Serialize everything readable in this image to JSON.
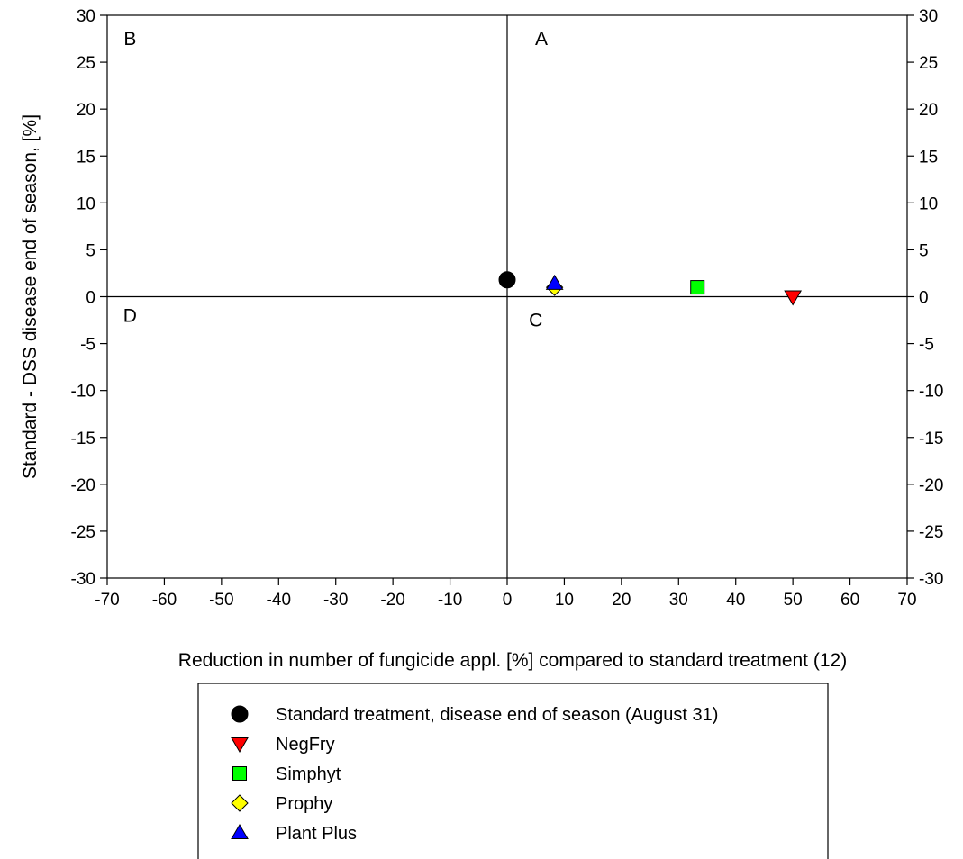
{
  "chart_data": {
    "type": "scatter",
    "xlabel": "Reduction in number of fungicide appl. [%] compared to standard treatment (12)",
    "ylabel": "Standard - DSS disease end of season, [%]",
    "xlim": [
      -70,
      70
    ],
    "ylim": [
      -30,
      30
    ],
    "x_ticks": [
      -70,
      -60,
      -50,
      -40,
      -30,
      -20,
      -10,
      0,
      10,
      20,
      30,
      40,
      50,
      60,
      70
    ],
    "y_ticks": [
      -30,
      -25,
      -20,
      -15,
      -10,
      -5,
      0,
      5,
      10,
      15,
      20,
      25,
      30
    ],
    "right_axis_ticks": true,
    "grid": false,
    "reference_lines": {
      "x": 0,
      "y": 0
    },
    "quadrant_labels": [
      {
        "text": "A",
        "x": 6,
        "y": 27.5
      },
      {
        "text": "B",
        "x": -66,
        "y": 27.5
      },
      {
        "text": "C",
        "x": 5,
        "y": -2.5
      },
      {
        "text": "D",
        "x": -66,
        "y": -2
      }
    ],
    "legend_position": "bottom-center",
    "series": [
      {
        "name": "Standard treatment, disease end of season (August 31)",
        "marker": "circle",
        "color": "#000000",
        "points": [
          {
            "x": 0,
            "y": 1.8
          }
        ]
      },
      {
        "name": "NegFry",
        "marker": "triangle-down",
        "color": "#ff0000",
        "points": [
          {
            "x": 50,
            "y": 0
          }
        ]
      },
      {
        "name": "Simphyt",
        "marker": "square",
        "color": "#00ff00",
        "points": [
          {
            "x": 33.3,
            "y": 1
          }
        ]
      },
      {
        "name": "Prophy",
        "marker": "diamond",
        "color": "#ffff00",
        "points": [
          {
            "x": 8.3,
            "y": 1
          }
        ]
      },
      {
        "name": "Plant Plus",
        "marker": "triangle-up",
        "color": "#0000ff",
        "points": [
          {
            "x": 8.3,
            "y": 1.4
          }
        ]
      }
    ]
  }
}
